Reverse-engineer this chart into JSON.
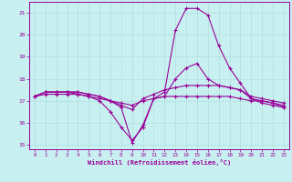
{
  "xlabel": "Windchill (Refroidissement éolien,°C)",
  "xlim": [
    -0.5,
    23.5
  ],
  "ylim": [
    14.8,
    21.5
  ],
  "xticks": [
    0,
    1,
    2,
    3,
    4,
    5,
    6,
    7,
    8,
    9,
    10,
    11,
    12,
    13,
    14,
    15,
    16,
    17,
    18,
    19,
    20,
    21,
    22,
    23
  ],
  "yticks": [
    15,
    16,
    17,
    18,
    19,
    20,
    21
  ],
  "background_color": "#c8f0f0",
  "grid_color": "#b0dede",
  "line_color": "#990099",
  "lines": [
    {
      "x": [
        0,
        1,
        2,
        3,
        4,
        5,
        6,
        7,
        8,
        9,
        10,
        11,
        12,
        13,
        14,
        15,
        16,
        17,
        18,
        19,
        20,
        21,
        22,
        23
      ],
      "y": [
        17.2,
        17.4,
        17.4,
        17.4,
        17.4,
        17.3,
        17.2,
        17.0,
        16.7,
        15.1,
        15.9,
        17.1,
        17.4,
        20.2,
        21.2,
        21.2,
        20.9,
        19.5,
        18.5,
        17.8,
        17.1,
        16.9,
        16.8,
        16.7
      ]
    },
    {
      "x": [
        0,
        1,
        2,
        3,
        4,
        5,
        6,
        7,
        8,
        9,
        10,
        11,
        12,
        13,
        14,
        15,
        16,
        17,
        18,
        19,
        20,
        21,
        22,
        23
      ],
      "y": [
        17.2,
        17.4,
        17.4,
        17.4,
        17.4,
        17.3,
        17.2,
        17.0,
        16.8,
        16.6,
        17.1,
        17.3,
        17.5,
        17.6,
        17.7,
        17.7,
        17.7,
        17.7,
        17.6,
        17.5,
        17.2,
        17.1,
        17.0,
        16.9
      ]
    },
    {
      "x": [
        0,
        1,
        2,
        3,
        4,
        5,
        6,
        7,
        8,
        9,
        10,
        11,
        12,
        13,
        14,
        15,
        16,
        17,
        18,
        19,
        20,
        21,
        22,
        23
      ],
      "y": [
        17.2,
        17.3,
        17.3,
        17.3,
        17.3,
        17.2,
        17.1,
        17.0,
        16.9,
        16.8,
        17.0,
        17.1,
        17.2,
        17.2,
        17.2,
        17.2,
        17.2,
        17.2,
        17.2,
        17.1,
        17.0,
        17.0,
        16.9,
        16.8
      ]
    },
    {
      "x": [
        0,
        1,
        2,
        3,
        4,
        5,
        6,
        7,
        8,
        9,
        10,
        11,
        12,
        13,
        14,
        15,
        16,
        17,
        18,
        19,
        20,
        21,
        22,
        23
      ],
      "y": [
        17.2,
        17.4,
        17.4,
        17.4,
        17.3,
        17.2,
        17.0,
        16.5,
        15.8,
        15.2,
        15.8,
        17.1,
        17.2,
        18.0,
        18.5,
        18.7,
        18.0,
        17.7,
        17.6,
        17.5,
        17.1,
        17.0,
        16.9,
        16.7
      ]
    }
  ]
}
